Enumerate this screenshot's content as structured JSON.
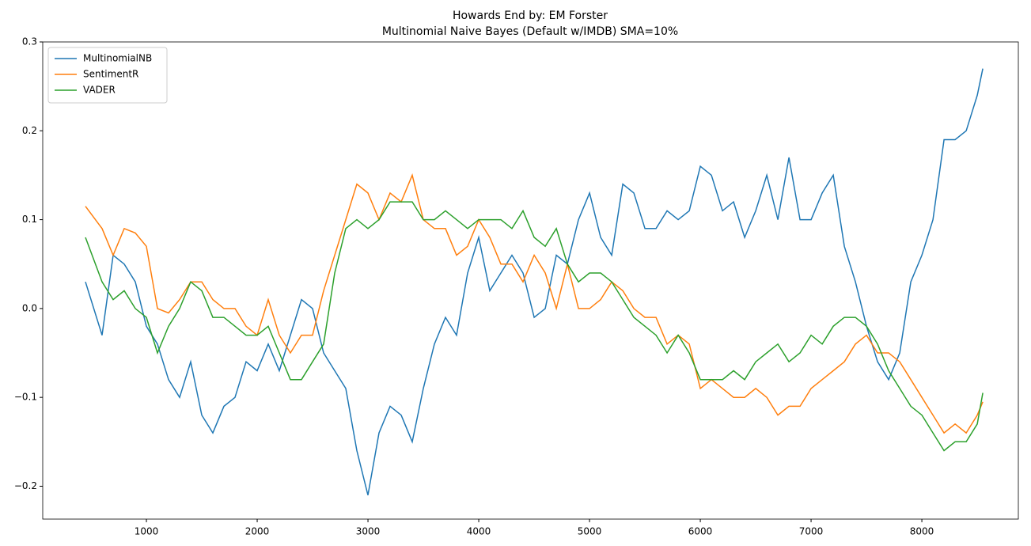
{
  "chart_data": {
    "type": "line",
    "title": "Howards End by: EM Forster",
    "subtitle": "Multinomial Naive Bayes (Default w/IMDB) SMA=10%",
    "x": [
      450,
      600,
      700,
      800,
      900,
      1000,
      1100,
      1200,
      1300,
      1400,
      1500,
      1600,
      1700,
      1800,
      1900,
      2000,
      2100,
      2200,
      2300,
      2400,
      2500,
      2600,
      2700,
      2800,
      2900,
      3000,
      3100,
      3200,
      3300,
      3400,
      3500,
      3600,
      3700,
      3800,
      3900,
      4000,
      4100,
      4200,
      4300,
      4400,
      4500,
      4600,
      4700,
      4800,
      4900,
      5000,
      5100,
      5200,
      5300,
      5400,
      5500,
      5600,
      5700,
      5800,
      5900,
      6000,
      6100,
      6200,
      6300,
      6400,
      6500,
      6600,
      6700,
      6800,
      6900,
      7000,
      7100,
      7200,
      7300,
      7400,
      7500,
      7600,
      7700,
      7800,
      7900,
      8000,
      8100,
      8200,
      8300,
      8400,
      8500,
      8550
    ],
    "series": [
      {
        "name": "MultinomialNB",
        "color": "#1f77b4",
        "values": [
          0.03,
          -0.03,
          0.06,
          0.05,
          0.03,
          -0.02,
          -0.04,
          -0.08,
          -0.1,
          -0.06,
          -0.12,
          -0.14,
          -0.11,
          -0.1,
          -0.06,
          -0.07,
          -0.04,
          -0.07,
          -0.03,
          0.01,
          0.0,
          -0.05,
          -0.07,
          -0.09,
          -0.16,
          -0.21,
          -0.14,
          -0.11,
          -0.12,
          -0.15,
          -0.09,
          -0.04,
          -0.01,
          -0.03,
          0.04,
          0.08,
          0.02,
          0.04,
          0.06,
          0.04,
          -0.01,
          0.0,
          0.06,
          0.05,
          0.1,
          0.13,
          0.08,
          0.06,
          0.14,
          0.13,
          0.09,
          0.09,
          0.11,
          0.1,
          0.11,
          0.16,
          0.15,
          0.11,
          0.12,
          0.08,
          0.11,
          0.15,
          0.1,
          0.17,
          0.1,
          0.1,
          0.13,
          0.15,
          0.07,
          0.03,
          -0.02,
          -0.06,
          -0.08,
          -0.05,
          0.03,
          0.06,
          0.1,
          0.19,
          0.19,
          0.2,
          0.24,
          0.27
        ]
      },
      {
        "name": "SentimentR",
        "color": "#ff7f0e",
        "values": [
          0.115,
          0.09,
          0.06,
          0.09,
          0.085,
          0.07,
          0.0,
          -0.005,
          0.01,
          0.03,
          0.03,
          0.01,
          0.0,
          0.0,
          -0.02,
          -0.03,
          0.01,
          -0.03,
          -0.05,
          -0.03,
          -0.03,
          0.02,
          0.06,
          0.1,
          0.14,
          0.13,
          0.1,
          0.13,
          0.12,
          0.15,
          0.1,
          0.09,
          0.09,
          0.06,
          0.07,
          0.1,
          0.08,
          0.05,
          0.05,
          0.03,
          0.06,
          0.04,
          0.0,
          0.05,
          0.0,
          0.0,
          0.01,
          0.03,
          0.02,
          0.0,
          -0.01,
          -0.01,
          -0.04,
          -0.03,
          -0.04,
          -0.09,
          -0.08,
          -0.09,
          -0.1,
          -0.1,
          -0.09,
          -0.1,
          -0.12,
          -0.11,
          -0.11,
          -0.09,
          -0.08,
          -0.07,
          -0.06,
          -0.04,
          -0.03,
          -0.05,
          -0.05,
          -0.06,
          -0.08,
          -0.1,
          -0.12,
          -0.14,
          -0.13,
          -0.14,
          -0.12,
          -0.105
        ]
      },
      {
        "name": "VADER",
        "color": "#2ca02c",
        "values": [
          0.08,
          0.03,
          0.01,
          0.02,
          0.0,
          -0.01,
          -0.05,
          -0.02,
          0.0,
          0.03,
          0.02,
          -0.01,
          -0.01,
          -0.02,
          -0.03,
          -0.03,
          -0.02,
          -0.05,
          -0.08,
          -0.08,
          -0.06,
          -0.04,
          0.04,
          0.09,
          0.1,
          0.09,
          0.1,
          0.12,
          0.12,
          0.12,
          0.1,
          0.1,
          0.11,
          0.1,
          0.09,
          0.1,
          0.1,
          0.1,
          0.09,
          0.11,
          0.08,
          0.07,
          0.09,
          0.05,
          0.03,
          0.04,
          0.04,
          0.03,
          0.01,
          -0.01,
          -0.02,
          -0.03,
          -0.05,
          -0.03,
          -0.05,
          -0.08,
          -0.08,
          -0.08,
          -0.07,
          -0.08,
          -0.06,
          -0.05,
          -0.04,
          -0.06,
          -0.05,
          -0.03,
          -0.04,
          -0.02,
          -0.01,
          -0.01,
          -0.02,
          -0.04,
          -0.07,
          -0.09,
          -0.11,
          -0.12,
          -0.14,
          -0.16,
          -0.15,
          -0.15,
          -0.13,
          -0.095
        ]
      }
    ],
    "xlim": [
      64,
      8871
    ],
    "ylim": [
      -0.237,
      0.3
    ],
    "xticks": [
      1000,
      2000,
      3000,
      4000,
      5000,
      6000,
      7000,
      8000
    ],
    "yticks": [
      {
        "value": -0.2,
        "label": "−0.2"
      },
      {
        "value": -0.1,
        "label": "−0.1"
      },
      {
        "value": 0,
        "label": "0.0"
      },
      0.1,
      0.2,
      0.3
    ],
    "legend": "upper left",
    "grid": false
  }
}
